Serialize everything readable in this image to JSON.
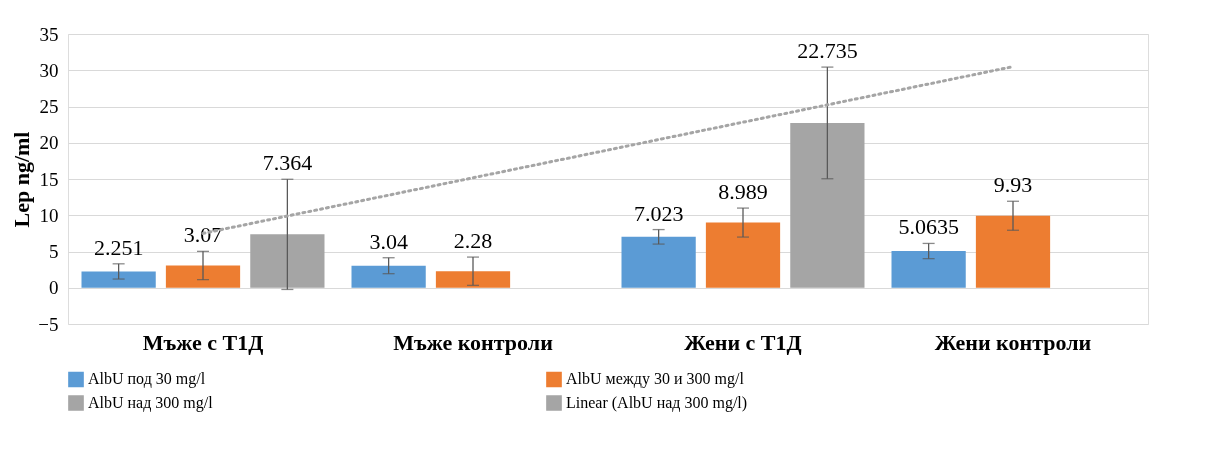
{
  "chart_data": {
    "type": "bar",
    "ylabel": "Lep ng/ml",
    "categories": [
      "Мъже с Т1Д",
      "Мъже контроли",
      "Жени с Т1Д",
      "Жени контроли"
    ],
    "series": [
      {
        "name": "AlbU под 30 mg/l",
        "color": "#5b9bd5",
        "values": [
          2.251,
          3.04,
          7.023,
          5.0635
        ],
        "value_labels": [
          "2.251",
          "3.04",
          "7.023",
          "5.0635"
        ],
        "errors": [
          1.05,
          1.1,
          1.0,
          1.05
        ]
      },
      {
        "name": "AlbU между 30 и 300 mg/l",
        "color": "#ed7d31",
        "values": [
          3.07,
          2.28,
          8.989,
          9.93
        ],
        "value_labels": [
          "3.07",
          "2.28",
          "8.989",
          "9.93"
        ],
        "errors": [
          1.95,
          1.95,
          2.0,
          2.0
        ]
      },
      {
        "name": "AlbU над 300 mg/l",
        "color": "#a5a5a5",
        "values": [
          7.364,
          null,
          22.735,
          null
        ],
        "value_labels": [
          "7.364",
          null,
          "22.735",
          null
        ],
        "errors": [
          7.6,
          null,
          7.7,
          null
        ]
      },
      {
        "name": "Linear (AlbU над 300 mg/l)",
        "type": "line",
        "line_style": "dotted",
        "color": "#a5a5a5",
        "x": [
          "Мъже с Т1Д",
          "Жени контроли"
        ],
        "values": [
          7.5,
          30.5
        ]
      }
    ],
    "ylim": [
      -5,
      35
    ],
    "yticks": [
      -5,
      0,
      5,
      10,
      15,
      20,
      25,
      30,
      35
    ],
    "grid": "y",
    "legend": "bottom"
  }
}
